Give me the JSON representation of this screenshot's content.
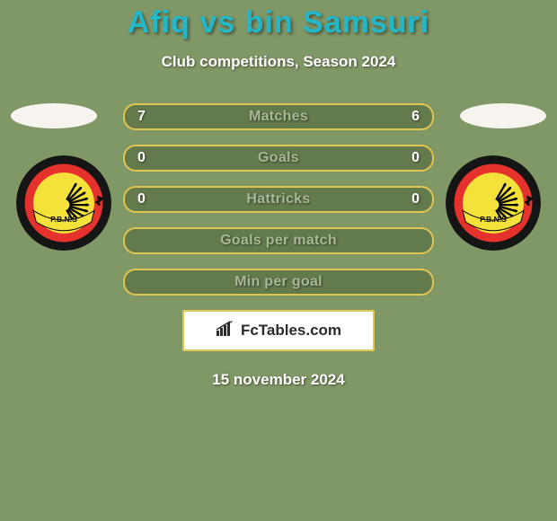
{
  "background_color": "#809766",
  "title": {
    "text": "Afiq vs bin Samsuri",
    "color": "#23b8c9",
    "fontsize": 34
  },
  "subtitle": {
    "text": "Club competitions, Season 2024",
    "color": "#ffffff",
    "fontsize": 17
  },
  "avatar_ellipse_color": "#f7f4ef",
  "stat_row": {
    "border_color": "#e2c451",
    "fill_color": "#637a4c",
    "label_color": "#a8b897",
    "value_color": "#ffffff",
    "height": 30,
    "border_radius": 14
  },
  "rows": [
    {
      "label": "Matches",
      "left": "7",
      "right": "6"
    },
    {
      "label": "Goals",
      "left": "0",
      "right": "0"
    },
    {
      "label": "Hattricks",
      "left": "0",
      "right": "0"
    },
    {
      "label": "Goals per match",
      "left": "",
      "right": ""
    },
    {
      "label": "Min per goal",
      "left": "",
      "right": ""
    }
  ],
  "brand": {
    "text": "FcTables.com",
    "box_bg": "#ffffff",
    "box_border": "#e2c451",
    "text_color": "#2b2b2b",
    "icon_color": "#2b2b2b"
  },
  "date": {
    "text": "15 november 2024",
    "color": "#ffffff",
    "fontsize": 17
  },
  "club_badge": {
    "outer_ring": "#151515",
    "mid_ring": "#e5322d",
    "inner_bg": "#f4e23a",
    "wheat_color": "#0a0a0a",
    "banner_color": "#f4e23a",
    "banner_text": "P.B.N.S",
    "banner_text_color": "#0a0a0a"
  }
}
